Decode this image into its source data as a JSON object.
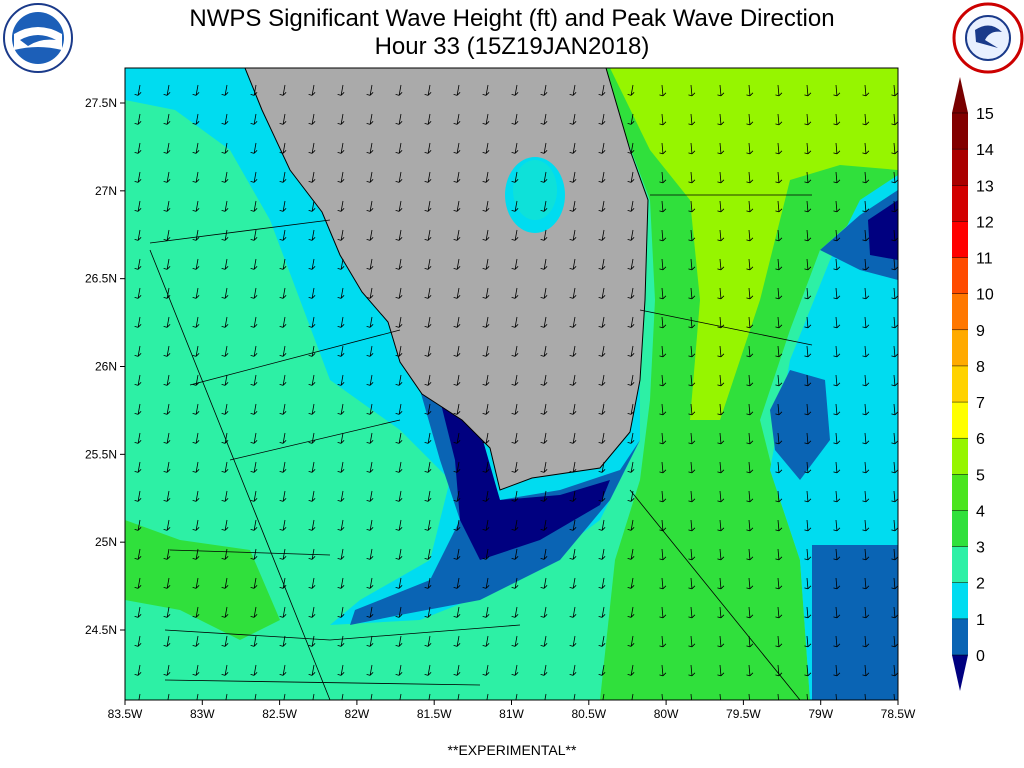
{
  "header": {
    "title_line1": "NWPS Significant Wave Height (ft) and Peak Wave Direction",
    "title_line2": "Hour 33 (15Z19JAN2018)"
  },
  "map": {
    "lon_labels": [
      "83.5W",
      "83W",
      "82.5W",
      "82W",
      "81.5W",
      "81W",
      "80.5W",
      "80W",
      "79.5W",
      "79W",
      "78.5W"
    ],
    "lat_labels": [
      "27.5N",
      "27N",
      "26.5N",
      "26N",
      "25.5N",
      "25N",
      "24.5N"
    ]
  },
  "colorbar": {
    "levels": [
      0,
      1,
      2,
      3,
      4,
      5,
      6,
      7,
      8,
      9,
      10,
      11,
      12,
      13,
      14,
      15
    ],
    "colors": [
      "#0a64b4",
      "#00dcf0",
      "#2df0a5",
      "#30e03c",
      "#4ae51e",
      "#96f500",
      "#ffff00",
      "#ffd200",
      "#ffaa00",
      "#ff7800",
      "#ff4b00",
      "#ff0000",
      "#d20000",
      "#aa0000",
      "#820000"
    ],
    "under_color": "#000080",
    "over_color": "#780000"
  },
  "footer": {
    "note": "**EXPERIMENTAL**"
  }
}
